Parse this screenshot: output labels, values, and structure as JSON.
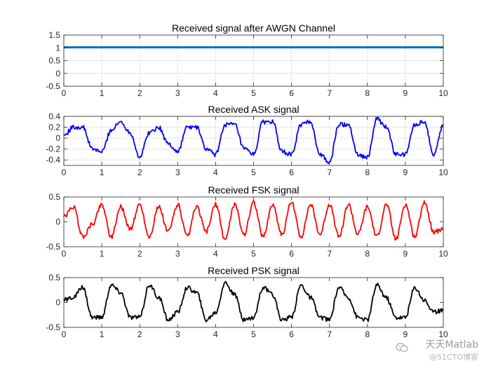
{
  "chart_data": [
    {
      "type": "line",
      "title": "Received signal after AWGN Channel",
      "xlim": [
        0,
        10
      ],
      "ylim": [
        -0.5,
        1.5
      ],
      "xticks": [
        0,
        1,
        2,
        3,
        4,
        5,
        6,
        7,
        8,
        9,
        10
      ],
      "xtick_labels": [
        "0",
        "1",
        "2",
        "3",
        "4",
        "5",
        "6",
        "7",
        "8",
        "9",
        "10"
      ],
      "yticks": [
        -0.5,
        0,
        0.5,
        1,
        1.5
      ],
      "ytick_labels": [
        "-0.5",
        "0",
        "0.5",
        "1",
        "1.5"
      ],
      "grid": true,
      "series": [
        {
          "name": "received",
          "color": "#0072BD",
          "x": [
            0,
            10
          ],
          "y": [
            1.02,
            1.02
          ]
        }
      ]
    },
    {
      "type": "line",
      "title": "Received ASK signal",
      "xlim": [
        0,
        10
      ],
      "ylim": [
        -0.5,
        0.4
      ],
      "xticks": [
        0,
        1,
        2,
        3,
        4,
        5,
        6,
        7,
        8,
        9,
        10
      ],
      "xtick_labels": [
        "0",
        "1",
        "2",
        "3",
        "4",
        "5",
        "6",
        "7",
        "8",
        "9",
        "10"
      ],
      "yticks": [
        -0.4,
        -0.2,
        0,
        0.2,
        0.4
      ],
      "ytick_labels": [
        "-0.4",
        "-0.2",
        "0",
        "0.2",
        "0.4"
      ],
      "grid": true,
      "series": [
        {
          "name": "ASK",
          "color": "#0000FF",
          "x": [
            0,
            0.25,
            0.5,
            0.75,
            1,
            1.25,
            1.5,
            1.75,
            2,
            2.25,
            2.5,
            2.75,
            3,
            3.25,
            3.5,
            3.75,
            4,
            4.25,
            4.5,
            4.75,
            5,
            5.25,
            5.5,
            5.75,
            6,
            6.25,
            6.5,
            6.75,
            7,
            7.25,
            7.5,
            7.75,
            8,
            8.25,
            8.5,
            8.75,
            9,
            9.25,
            9.5,
            9.75,
            10
          ],
          "y": [
            0.05,
            0.2,
            0.2,
            -0.2,
            -0.25,
            0.15,
            0.3,
            0.1,
            -0.35,
            0.1,
            0.2,
            -0.1,
            -0.25,
            0.2,
            0.2,
            -0.2,
            -0.3,
            0.25,
            0.25,
            -0.2,
            -0.3,
            0.3,
            0.3,
            -0.25,
            -0.3,
            0.25,
            0.3,
            -0.3,
            -0.45,
            0.25,
            0.25,
            -0.3,
            -0.35,
            0.35,
            0.2,
            -0.3,
            -0.3,
            0.25,
            0.3,
            -0.3,
            0.25
          ]
        }
      ]
    },
    {
      "type": "line",
      "title": "Received FSK signal",
      "xlim": [
        0,
        10
      ],
      "ylim": [
        -0.5,
        0.5
      ],
      "xticks": [
        0,
        1,
        2,
        3,
        4,
        5,
        6,
        7,
        8,
        9,
        10
      ],
      "xtick_labels": [
        "0",
        "1",
        "2",
        "3",
        "4",
        "5",
        "6",
        "7",
        "8",
        "9",
        "10"
      ],
      "yticks": [
        -0.5,
        0,
        0.5
      ],
      "ytick_labels": [
        "-0.5",
        "0",
        "0.5"
      ],
      "grid": false,
      "series": [
        {
          "name": "FSK",
          "color": "#FF0000",
          "x": [
            0,
            0.25,
            0.5,
            0.75,
            1,
            1.25,
            1.5,
            1.75,
            2,
            2.25,
            2.5,
            2.75,
            3,
            3.25,
            3.5,
            3.75,
            4,
            4.25,
            4.5,
            4.75,
            5,
            5.25,
            5.5,
            5.75,
            6,
            6.25,
            6.5,
            6.75,
            7,
            7.25,
            7.5,
            7.75,
            8,
            8.25,
            8.5,
            8.75,
            9,
            9.25,
            9.5,
            9.75,
            10
          ],
          "y": [
            0.1,
            0.3,
            -0.3,
            -0.05,
            0.35,
            -0.3,
            0.3,
            -0.15,
            0.35,
            -0.3,
            0.3,
            -0.2,
            0.35,
            -0.3,
            0.3,
            -0.2,
            0.35,
            -0.35,
            0.35,
            -0.25,
            0.4,
            -0.3,
            0.35,
            -0.25,
            0.4,
            -0.3,
            0.35,
            -0.25,
            0.35,
            -0.3,
            0.35,
            -0.25,
            0.3,
            -0.3,
            0.35,
            -0.35,
            0.35,
            -0.3,
            0.4,
            -0.2,
            -0.15
          ]
        }
      ]
    },
    {
      "type": "line",
      "title": "Received PSK signal",
      "xlim": [
        0,
        10
      ],
      "ylim": [
        -0.5,
        0.5
      ],
      "xticks": [
        0,
        1,
        2,
        3,
        4,
        5,
        6,
        7,
        8,
        9,
        10
      ],
      "xtick_labels": [
        "0",
        "1",
        "2",
        "3",
        "4",
        "5",
        "6",
        "7",
        "8",
        "9",
        "10"
      ],
      "yticks": [
        -0.5,
        0,
        0.5
      ],
      "ytick_labels": [
        "-0.5",
        "0",
        "0.5"
      ],
      "grid": false,
      "series": [
        {
          "name": "PSK",
          "color": "#000000",
          "x": [
            0,
            0.25,
            0.5,
            0.75,
            1,
            1.25,
            1.5,
            1.75,
            2,
            2.25,
            2.5,
            2.75,
            3,
            3.25,
            3.5,
            3.75,
            4,
            4.25,
            4.5,
            4.75,
            5,
            5.25,
            5.5,
            5.75,
            6,
            6.25,
            6.5,
            6.75,
            7,
            7.25,
            7.5,
            7.75,
            8,
            8.25,
            8.5,
            8.75,
            9,
            9.25,
            9.5,
            9.75,
            10
          ],
          "y": [
            0.05,
            0.1,
            0.3,
            -0.3,
            -0.3,
            0.35,
            0.2,
            -0.3,
            -0.3,
            0.35,
            0.1,
            -0.35,
            -0.2,
            0.3,
            0.2,
            -0.35,
            -0.2,
            0.4,
            0.15,
            -0.35,
            -0.3,
            0.3,
            0.15,
            -0.35,
            -0.3,
            0.35,
            0.1,
            -0.3,
            -0.35,
            0.3,
            0.1,
            -0.3,
            -0.35,
            0.35,
            0.1,
            -0.3,
            -0.3,
            0.3,
            0.05,
            -0.2,
            -0.15
          ]
        }
      ]
    }
  ],
  "watermark": {
    "line1": "天天Matlab",
    "line2": "@51CTO博客"
  }
}
